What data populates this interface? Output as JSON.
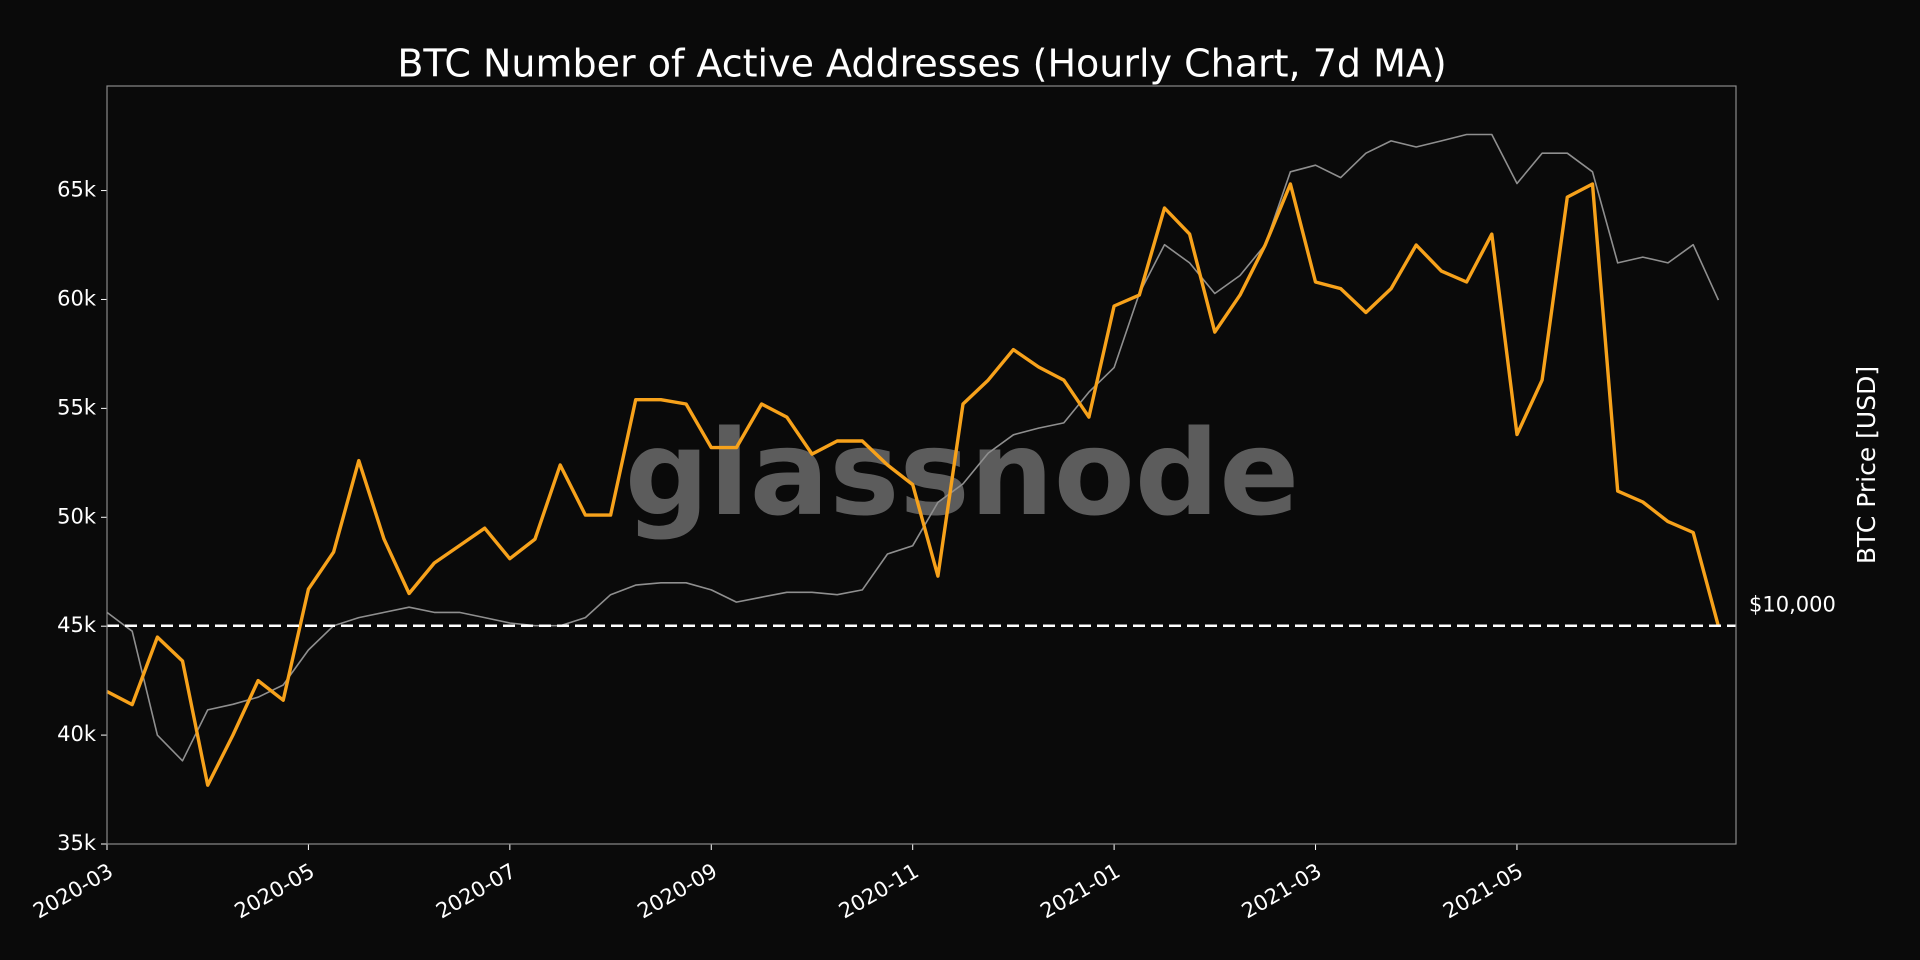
{
  "chart_data": {
    "type": "line",
    "title": "BTC Number of Active Addresses (Hourly Chart, 7d MA)",
    "y2label": "BTC Price [USD]",
    "watermark": "glassnode",
    "categories": [
      "2020-03",
      null,
      null,
      null,
      null,
      null,
      null,
      null,
      "2020-05",
      null,
      null,
      null,
      null,
      null,
      null,
      null,
      "2020-07",
      null,
      null,
      null,
      null,
      null,
      null,
      null,
      "2020-09",
      null,
      null,
      null,
      null,
      null,
      null,
      null,
      "2020-11",
      null,
      null,
      null,
      null,
      null,
      null,
      null,
      "2021-01",
      null,
      null,
      null,
      null,
      null,
      null,
      null,
      "2021-03",
      null,
      null,
      null,
      null,
      null,
      null,
      null,
      "2021-05",
      null,
      null,
      null,
      null,
      null,
      null,
      null,
      null
    ],
    "ylim": [
      35000,
      69800
    ],
    "yticks": [
      {
        "value": 35000,
        "label": "35k"
      },
      {
        "value": 40000,
        "label": "40k"
      },
      {
        "value": 45000,
        "label": "45k"
      },
      {
        "value": 50000,
        "label": "50k"
      },
      {
        "value": 55000,
        "label": "55k"
      },
      {
        "value": 60000,
        "label": "60k"
      },
      {
        "value": 65000,
        "label": "65k"
      }
    ],
    "y2lim": [
      4500,
      72000
    ],
    "y2log": true,
    "y2ticks": [
      {
        "value": 10000,
        "label": "$10,000"
      }
    ],
    "series": [
      {
        "name": "BTC Price",
        "axis": "y2",
        "color": "#8f8f8f",
        "values": [
          10500,
          9800,
          6700,
          6100,
          7350,
          7500,
          7700,
          8050,
          9150,
          10000,
          10300,
          10500,
          10700,
          10500,
          10500,
          10300,
          10100,
          10000,
          10000,
          10300,
          11200,
          11600,
          11700,
          11700,
          11400,
          10900,
          11100,
          11300,
          11300,
          11200,
          11400,
          13000,
          13400,
          15700,
          16800,
          18800,
          20100,
          20600,
          21000,
          23500,
          25700,
          33700,
          40300,
          37700,
          33700,
          36000,
          40300,
          52600,
          53900,
          51500,
          56300,
          58900,
          57600,
          58900,
          60300,
          60300,
          50400,
          56300,
          56300,
          52600,
          37700,
          38500,
          37700,
          40300,
          32900
        ]
      },
      {
        "name": "Active Addresses",
        "axis": "y",
        "color": "#f7a21b",
        "values": [
          42000,
          41400,
          44500,
          43400,
          37700,
          40000,
          42500,
          41600,
          46700,
          48400,
          52600,
          49000,
          46500,
          47900,
          48700,
          49500,
          48100,
          49000,
          52400,
          50100,
          50100,
          55400,
          55400,
          55200,
          53200,
          53200,
          55200,
          54600,
          52900,
          53500,
          53500,
          52400,
          51500,
          47300,
          55200,
          56300,
          57700,
          56900,
          56300,
          54600,
          59700,
          60200,
          64200,
          63000,
          58500,
          60200,
          62500,
          65300,
          60800,
          60500,
          59400,
          60500,
          62500,
          61300,
          60800,
          63000,
          53800,
          56300,
          64700,
          65300,
          51200,
          50700,
          49800,
          49300,
          45000
        ]
      }
    ]
  }
}
